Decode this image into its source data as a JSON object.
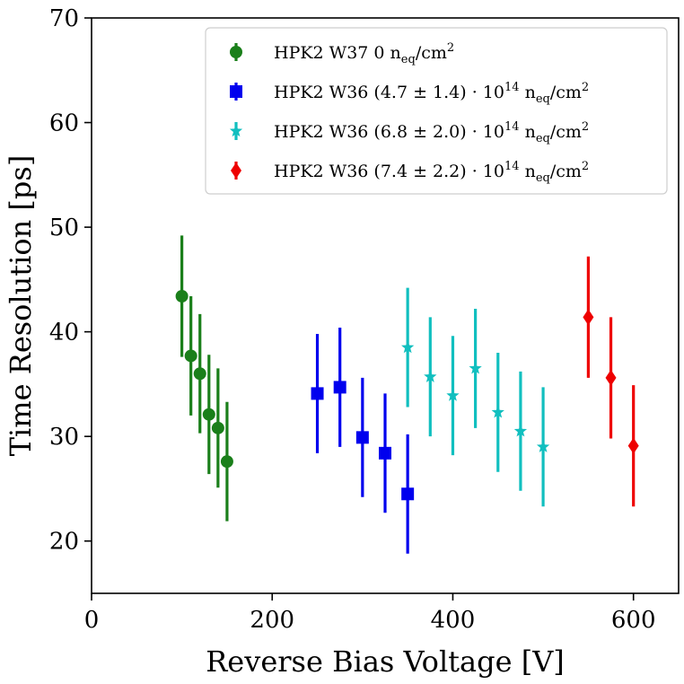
{
  "chart_data": {
    "type": "scatter",
    "title": "",
    "xlabel": "Reverse Bias Voltage [V]",
    "ylabel": "Time Resolution [ps]",
    "xlim": [
      0,
      650
    ],
    "ylim": [
      15,
      70
    ],
    "xticks": [
      "0",
      "200",
      "400",
      "600"
    ],
    "xtick_values": [
      0,
      200,
      400,
      600
    ],
    "yticks": [
      "20",
      "30",
      "40",
      "50",
      "60",
      "70"
    ],
    "ytick_values": [
      20,
      30,
      40,
      50,
      60,
      70
    ],
    "grid": false,
    "legend_position": "top-right",
    "series": [
      {
        "name": "HPK2 W37 0 neq/cm2",
        "legend": {
          "prefix": "HPK2 W37 0 n",
          "sub": "eq",
          "mid": "/cm",
          "sup": "2",
          "suffix": ""
        },
        "color": "#1a7f1a",
        "marker": "circle",
        "points": [
          {
            "x": 100,
            "y": 43.4,
            "err": 5.8
          },
          {
            "x": 110,
            "y": 37.7,
            "err": 5.7
          },
          {
            "x": 120,
            "y": 36.0,
            "err": 5.7
          },
          {
            "x": 130,
            "y": 32.1,
            "err": 5.7
          },
          {
            "x": 140,
            "y": 30.8,
            "err": 5.7
          },
          {
            "x": 150,
            "y": 27.6,
            "err": 5.7
          }
        ]
      },
      {
        "name": "HPK2 W36 (4.7 ± 1.4) · 10^14 neq/cm2",
        "legend": {
          "prefix": "HPK2 W36 (4.7 ± 1.4) ·  10",
          "sup1": "14",
          "mid": " n",
          "sub": "eq",
          "mid2": "/cm",
          "sup": "2"
        },
        "color": "#0000ee",
        "marker": "square",
        "points": [
          {
            "x": 250,
            "y": 34.1,
            "err": 5.7
          },
          {
            "x": 275,
            "y": 34.7,
            "err": 5.7
          },
          {
            "x": 300,
            "y": 29.9,
            "err": 5.7
          },
          {
            "x": 325,
            "y": 28.4,
            "err": 5.7
          },
          {
            "x": 350,
            "y": 24.5,
            "err": 5.7
          }
        ]
      },
      {
        "name": "HPK2 W36 (6.8 ± 2.0) · 10^14 neq/cm2",
        "legend": {
          "prefix": "HPK2 W36 (6.8 ± 2.0) ·  10",
          "sup1": "14",
          "mid": " n",
          "sub": "eq",
          "mid2": "/cm",
          "sup": "2"
        },
        "color": "#11bfbf",
        "marker": "star",
        "points": [
          {
            "x": 350,
            "y": 38.5,
            "err": 5.7
          },
          {
            "x": 375,
            "y": 35.7,
            "err": 5.7
          },
          {
            "x": 400,
            "y": 33.9,
            "err": 5.7
          },
          {
            "x": 425,
            "y": 36.5,
            "err": 5.7
          },
          {
            "x": 450,
            "y": 32.3,
            "err": 5.7
          },
          {
            "x": 475,
            "y": 30.5,
            "err": 5.7
          },
          {
            "x": 500,
            "y": 29.0,
            "err": 5.7
          }
        ]
      },
      {
        "name": "HPK2 W36 (7.4 ± 2.2) · 10^14 neq/cm2",
        "legend": {
          "prefix": "HPK2 W36 (7.4 ± 2.2) ·  10",
          "sup1": "14",
          "mid": " n",
          "sub": "eq",
          "mid2": "/cm",
          "sup": "2"
        },
        "color": "#ee0000",
        "marker": "diamond",
        "points": [
          {
            "x": 550,
            "y": 41.4,
            "err": 5.8
          },
          {
            "x": 575,
            "y": 35.6,
            "err": 5.8
          },
          {
            "x": 600,
            "y": 29.1,
            "err": 5.8
          }
        ]
      }
    ]
  }
}
